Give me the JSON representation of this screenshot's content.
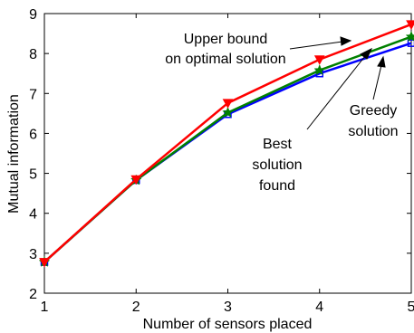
{
  "chart_data": {
    "type": "line",
    "xlabel": "Number of sensors placed",
    "ylabel": "Mutual information",
    "xlim": [
      1,
      5
    ],
    "ylim": [
      2,
      9
    ],
    "xticks": [
      1,
      2,
      3,
      4,
      5
    ],
    "yticks": [
      2,
      3,
      4,
      5,
      6,
      7,
      8,
      9
    ],
    "grid": false,
    "x": [
      1,
      2,
      3,
      4,
      5
    ],
    "series": [
      {
        "key": "greedy",
        "color": "#0000ff",
        "marker": "square",
        "values": [
          2.78,
          4.83,
          6.48,
          7.5,
          8.26
        ]
      },
      {
        "key": "best",
        "color": "#008000",
        "marker": "star",
        "values": [
          2.78,
          4.83,
          6.52,
          7.58,
          8.42
        ]
      },
      {
        "key": "upper",
        "color": "#ff0000",
        "marker": "triangle",
        "values": [
          2.78,
          4.85,
          6.76,
          7.85,
          8.73
        ]
      }
    ],
    "annotations": [
      {
        "key": "upper",
        "lines": [
          "Upper bound",
          "on optimal solution"
        ]
      },
      {
        "key": "greedy",
        "lines": [
          "Greedy",
          "solution"
        ]
      },
      {
        "key": "best",
        "lines": [
          "Best",
          "solution",
          "found"
        ]
      }
    ]
  }
}
